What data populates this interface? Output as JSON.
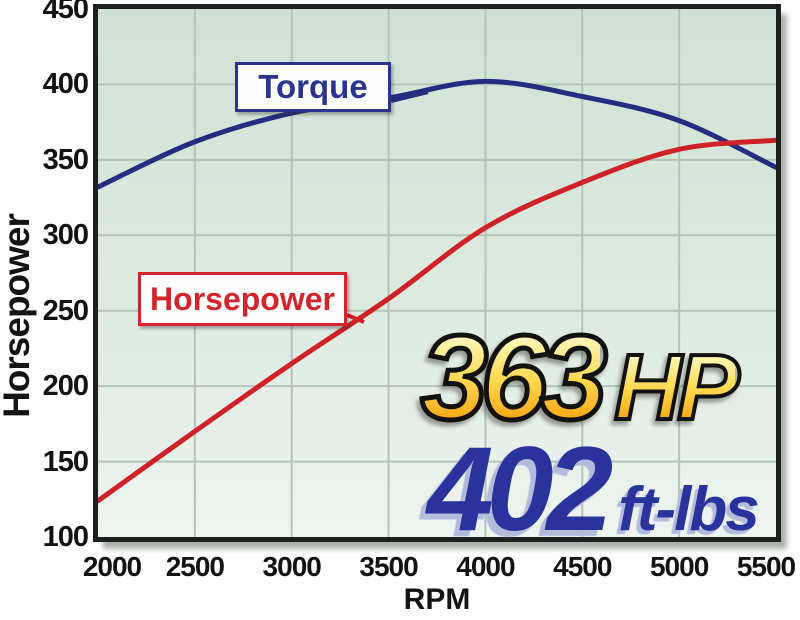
{
  "chart_data": {
    "type": "line",
    "x_label": "RPM",
    "y_label": "Horsepower",
    "xlim": [
      2000,
      5500
    ],
    "ylim": [
      100,
      450
    ],
    "x_ticks": [
      2000,
      2500,
      3000,
      3500,
      4000,
      4500,
      5000,
      5500
    ],
    "y_ticks": [
      450,
      400,
      350,
      300,
      250,
      200,
      150,
      100
    ],
    "grid": true,
    "legend_position": "inline-callouts",
    "x": [
      2000,
      2500,
      3000,
      3500,
      4000,
      4500,
      5000,
      5500
    ],
    "series": [
      {
        "name": "Torque",
        "color": "#232e80",
        "values": [
          332,
          362,
          381,
          391,
          402,
          392,
          376,
          345
        ]
      },
      {
        "name": "Horsepower",
        "color": "#cf2128",
        "values": [
          124,
          170,
          215,
          258,
          305,
          335,
          357,
          363
        ]
      }
    ],
    "callouts": {
      "torque_label": "Torque",
      "horsepower_label": "Horsepower"
    },
    "result_badges": {
      "hp_value": "363",
      "hp_unit": "HP",
      "torque_value": "402",
      "torque_unit": "ft-lbs"
    }
  },
  "colors": {
    "torque_line": "#232e80",
    "horsepower_line": "#cf2128",
    "plot_bg_top": "#cfe1d5",
    "plot_bg_bottom": "#eef4ef",
    "grid_line": "#b3c4b8",
    "plot_border": "#1d211d",
    "badge_gold": "#ffc93c",
    "badge_navy": "#28339b",
    "tick_text": "#131313"
  }
}
